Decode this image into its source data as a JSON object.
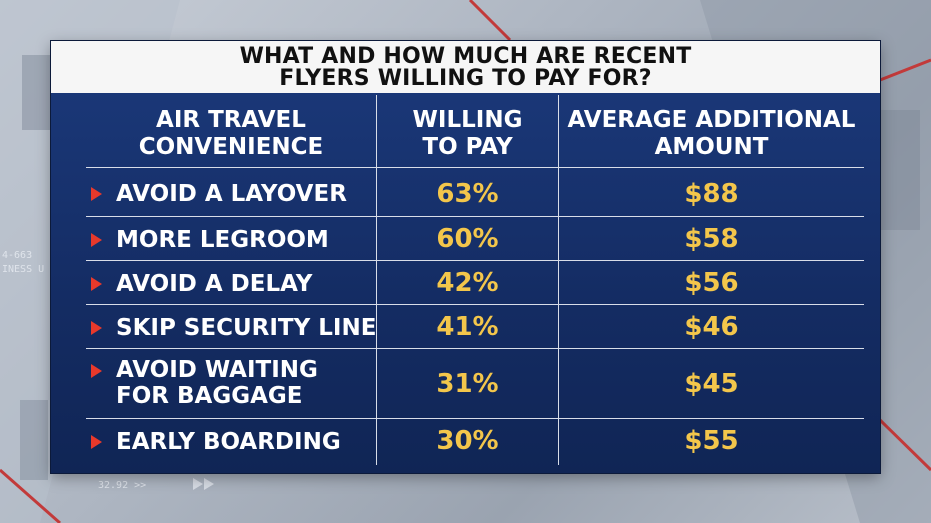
{
  "title": {
    "line1": "WHAT AND HOW MUCH ARE RECENT",
    "line2": "FLYERS WILLING TO PAY FOR?"
  },
  "headers": {
    "col1": [
      "AIR TRAVEL",
      "CONVENIENCE"
    ],
    "col2": [
      "WILLING",
      "TO PAY"
    ],
    "col3": [
      "AVERAGE ADDITIONAL",
      "AMOUNT"
    ]
  },
  "rows": [
    {
      "label": [
        "AVOID A LAYOVER"
      ],
      "willing": "63%",
      "amount": "$88"
    },
    {
      "label": [
        "MORE LEGROOM"
      ],
      "willing": "60%",
      "amount": "$58"
    },
    {
      "label": [
        "AVOID A DELAY"
      ],
      "willing": "42%",
      "amount": "$56"
    },
    {
      "label": [
        "SKIP SECURITY LINE"
      ],
      "willing": "41%",
      "amount": "$46"
    },
    {
      "label": [
        "AVOID WAITING",
        "FOR BAGGAGE"
      ],
      "willing": "31%",
      "amount": "$45"
    },
    {
      "label": [
        "EARLY BOARDING"
      ],
      "willing": "30%",
      "amount": "$55"
    }
  ],
  "background_text": {
    "left_a": "4-663",
    "left_b": "INESS U",
    "bottom": "32.92 >>"
  },
  "colors": {
    "panel": "#16306a",
    "value": "#f3c64b",
    "arrow": "#e8392b",
    "title_bg": "#f6f6f6"
  }
}
